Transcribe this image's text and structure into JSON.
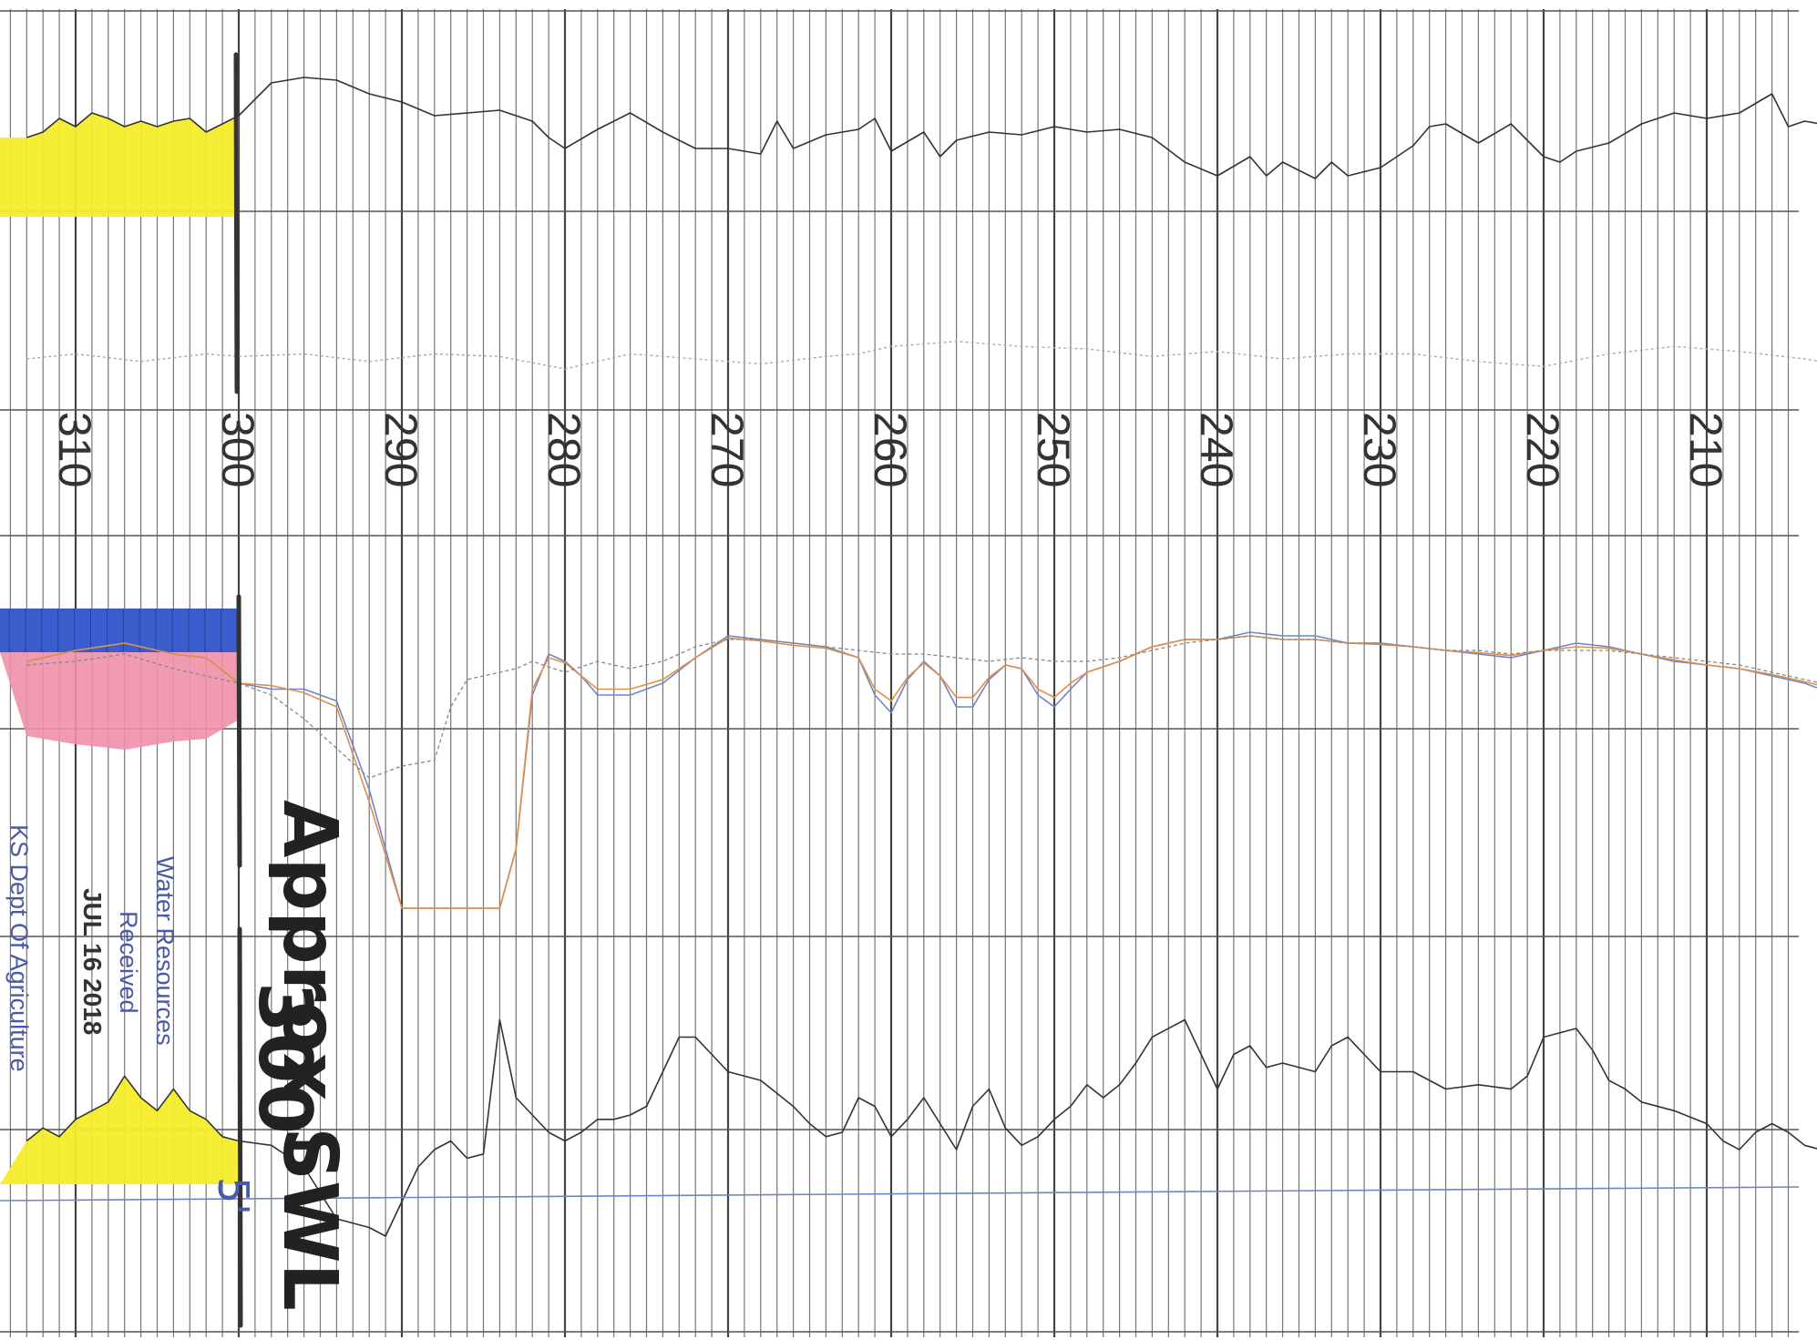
{
  "chart_data": {
    "type": "line",
    "x_axis": {
      "label": "",
      "unit": "",
      "direction": "decreasing left-to-right",
      "range": [
        313,
        203
      ],
      "tick_labels": [
        "310",
        "300",
        "290",
        "280",
        "270",
        "260",
        "250",
        "240",
        "230",
        "220",
        "210"
      ]
    },
    "tracks": [
      {
        "name": "",
        "series": [
          {
            "name": "",
            "color": "#333333",
            "style": "solid",
            "x": [
              313,
              312,
              311,
              310,
              309,
              308,
              307,
              306,
              305,
              304,
              303,
              302,
              301,
              300,
              298,
              296,
              294,
              292,
              290,
              288,
              286,
              284,
              282,
              281,
              280,
              278,
              276,
              274,
              272,
              270,
              268,
              267,
              266,
              264,
              262,
              261,
              260,
              258,
              257,
              256,
              254,
              252,
              250,
              248,
              246,
              244,
              242,
              240,
              238,
              237,
              236,
              234,
              233,
              232,
              230,
              228,
              227,
              226,
              224,
              222,
              220,
              219,
              218,
              216,
              214,
              212,
              210,
              208,
              206,
              205,
              204,
              203
            ],
            "y": [
              0.4,
              0.5,
              0.75,
              0.6,
              0.85,
              0.75,
              0.6,
              0.7,
              0.6,
              0.7,
              0.75,
              0.5,
              0.65,
              0.8,
              1.4,
              1.5,
              1.45,
              1.2,
              1.05,
              0.8,
              0.85,
              0.9,
              0.7,
              0.4,
              0.2,
              0.55,
              0.85,
              0.5,
              0.2,
              0.2,
              0.1,
              0.7,
              0.2,
              0.45,
              0.55,
              0.75,
              0.15,
              0.5,
              0.05,
              0.35,
              0.5,
              0.45,
              0.6,
              0.5,
              0.55,
              0.4,
              -0.05,
              -0.3,
              0.05,
              -0.3,
              -0.05,
              -0.35,
              -0.05,
              -0.3,
              -0.15,
              0.25,
              0.6,
              0.65,
              0.3,
              0.65,
              0.05,
              -0.05,
              0.15,
              0.3,
              0.65,
              0.85,
              0.75,
              0.85,
              1.2,
              0.6,
              0.7,
              0.65
            ]
          },
          {
            "name": "",
            "color": "#aaaaaa",
            "style": "dotted",
            "x": [
              313,
              310,
              306,
              302,
              300,
              296,
              292,
              288,
              284,
              280,
              276,
              272,
              268,
              264,
              262,
              260,
              256,
              252,
              248,
              244,
              240,
              236,
              232,
              228,
              224,
              220,
              216,
              212,
              208,
              204,
              203
            ],
            "y": [
              0.2,
              0.3,
              0.15,
              0.3,
              0.25,
              0.3,
              0.15,
              0.3,
              0.25,
              0.0,
              0.3,
              0.2,
              0.1,
              0.25,
              0.3,
              0.45,
              0.55,
              0.45,
              0.4,
              0.25,
              0.35,
              0.2,
              0.3,
              0.3,
              0.15,
              0.05,
              0.3,
              0.45,
              0.35,
              0.2,
              0.15
            ]
          }
        ]
      },
      {
        "name": "",
        "series": [
          {
            "name": "",
            "color": "#6f86c6",
            "style": "solid",
            "x": [
              313,
              310,
              307,
              304,
              302,
              300,
              298,
              296,
              294,
              292,
              290,
              288,
              286,
              285,
              284,
              283,
              282,
              281,
              280,
              279,
              278,
              276,
              274,
              272,
              270,
              268,
              266,
              264,
              262,
              261,
              260,
              259,
              258,
              257,
              256,
              255,
              254,
              253,
              252,
              251,
              250,
              249,
              248,
              246,
              244,
              242,
              240,
              238,
              236,
              234,
              232,
              230,
              228,
              226,
              224,
              222,
              220,
              218,
              216,
              214,
              212,
              210,
              208,
              206,
              204,
              203
            ],
            "y": [
              0.3,
              0.45,
              0.55,
              0.4,
              0.35,
              0.0,
              -0.05,
              -0.05,
              -0.15,
              -0.9,
              -1.9,
              -1.9,
              -1.9,
              -1.9,
              -1.9,
              -1.4,
              -0.1,
              0.4,
              0.3,
              0.1,
              -0.1,
              -0.1,
              0.0,
              0.35,
              0.65,
              0.6,
              0.55,
              0.5,
              0.35,
              -0.1,
              -0.25,
              0.05,
              0.3,
              0.1,
              -0.2,
              -0.2,
              0.05,
              0.25,
              0.2,
              -0.1,
              -0.2,
              -0.05,
              0.15,
              0.3,
              0.5,
              0.6,
              0.6,
              0.7,
              0.65,
              0.65,
              0.55,
              0.55,
              0.5,
              0.45,
              0.4,
              0.35,
              0.45,
              0.55,
              0.5,
              0.4,
              0.3,
              0.25,
              0.2,
              0.1,
              0.0,
              -0.05
            ]
          },
          {
            "name": "",
            "color": "#e08f4a",
            "style": "solid",
            "x": [
              313,
              310,
              307,
              304,
              302,
              300,
              298,
              296,
              294,
              292,
              290,
              288,
              286,
              285,
              284,
              283,
              282,
              281,
              280,
              279,
              278,
              276,
              274,
              272,
              270,
              268,
              266,
              264,
              262,
              261,
              260,
              259,
              258,
              257,
              256,
              255,
              254,
              253,
              252,
              251,
              250,
              249,
              248,
              246,
              244,
              242,
              240,
              238,
              236,
              234,
              232,
              230,
              228,
              226,
              224,
              222,
              220,
              218,
              216,
              214,
              212,
              210,
              208,
              206,
              204,
              203
            ],
            "y": [
              0.3,
              0.45,
              0.55,
              0.4,
              0.35,
              0.0,
              -0.02,
              -0.08,
              -0.2,
              -1.0,
              -1.9,
              -1.9,
              -1.9,
              -1.9,
              -1.9,
              -1.4,
              -0.05,
              0.35,
              0.28,
              0.1,
              -0.05,
              -0.05,
              0.05,
              0.35,
              0.62,
              0.58,
              0.52,
              0.48,
              0.35,
              -0.05,
              -0.15,
              0.08,
              0.28,
              0.1,
              -0.12,
              -0.12,
              0.08,
              0.25,
              0.2,
              -0.05,
              -0.12,
              0.0,
              0.15,
              0.3,
              0.5,
              0.6,
              0.6,
              0.65,
              0.6,
              0.6,
              0.55,
              0.53,
              0.5,
              0.45,
              0.42,
              0.38,
              0.45,
              0.5,
              0.48,
              0.4,
              0.32,
              0.25,
              0.2,
              0.12,
              0.02,
              -0.02
            ]
          },
          {
            "name": "",
            "color": "#888888",
            "style": "dotted",
            "x": [
              313,
              310,
              307,
              304,
              302,
              300,
              298,
              296,
              294,
              292,
              290,
              288,
              287,
              286,
              285,
              284,
              283,
              282,
              280,
              278,
              276,
              274,
              272,
              270,
              268,
              266,
              264,
              262,
              260,
              258,
              256,
              254,
              252,
              250,
              248,
              246,
              244,
              242,
              240,
              238,
              236,
              234,
              232,
              230,
              228,
              226,
              224,
              222,
              220,
              218,
              216,
              214,
              212,
              210,
              208,
              206,
              204,
              203
            ],
            "y": [
              0.25,
              0.3,
              0.4,
              0.2,
              0.1,
              0.0,
              -0.1,
              -0.3,
              -0.55,
              -0.8,
              -0.7,
              -0.65,
              -0.2,
              0.05,
              0.1,
              0.15,
              0.2,
              0.3,
              0.15,
              0.3,
              0.2,
              0.3,
              0.5,
              0.6,
              0.6,
              0.55,
              0.5,
              0.45,
              0.4,
              0.4,
              0.35,
              0.3,
              0.35,
              0.3,
              0.3,
              0.35,
              0.45,
              0.55,
              0.6,
              0.65,
              0.6,
              0.6,
              0.55,
              0.55,
              0.5,
              0.45,
              0.45,
              0.4,
              0.45,
              0.45,
              0.45,
              0.4,
              0.35,
              0.3,
              0.25,
              0.15,
              0.05,
              0.0
            ]
          }
        ]
      },
      {
        "name": "",
        "series": [
          {
            "name": "",
            "color": "#333333",
            "style": "solid",
            "x": [
              313,
              312,
              311,
              310,
              309,
              308,
              307,
              306,
              305,
              304,
              303,
              302,
              301,
              300,
              298,
              296,
              294,
              292,
              291,
              290,
              289,
              288,
              287,
              286,
              285,
              284,
              283,
              282,
              281,
              280,
              279,
              278,
              277,
              276,
              275,
              274,
              273,
              272,
              271,
              270,
              268,
              266,
              265,
              264,
              263,
              262,
              261,
              260,
              259,
              258,
              257,
              256,
              255,
              254,
              253,
              252,
              251,
              250,
              249,
              248,
              247,
              246,
              245,
              244,
              242,
              240,
              239,
              238,
              237,
              236,
              234,
              233,
              232,
              230,
              228,
              226,
              224,
              222,
              221,
              220,
              218,
              217,
              216,
              215,
              214,
              212,
              210,
              209,
              208,
              207,
              206,
              205,
              204,
              203
            ],
            "y": [
              0.1,
              0.25,
              0.15,
              0.35,
              0.45,
              0.55,
              0.85,
              0.6,
              0.45,
              0.7,
              0.45,
              0.35,
              0.15,
              0.1,
              0.05,
              -0.2,
              -0.8,
              -0.9,
              -1.0,
              -0.6,
              -0.2,
              0.0,
              0.1,
              -0.1,
              -0.05,
              1.5,
              0.6,
              0.4,
              0.2,
              0.1,
              0.2,
              0.35,
              0.35,
              0.4,
              0.5,
              0.9,
              1.3,
              1.3,
              1.1,
              0.9,
              0.8,
              0.5,
              0.3,
              0.15,
              0.2,
              0.6,
              0.5,
              0.15,
              0.35,
              0.6,
              0.3,
              0.0,
              0.5,
              0.7,
              0.25,
              0.05,
              0.15,
              0.35,
              0.5,
              0.75,
              0.6,
              0.75,
              1.0,
              1.3,
              1.5,
              0.7,
              1.1,
              1.2,
              0.95,
              1.0,
              0.9,
              1.2,
              1.3,
              0.9,
              0.9,
              0.7,
              0.75,
              0.7,
              0.85,
              1.3,
              1.4,
              1.15,
              0.8,
              0.7,
              0.55,
              0.45,
              0.3,
              0.1,
              0.0,
              0.2,
              0.3,
              0.2,
              0.05,
              0.0
            ]
          }
        ]
      }
    ],
    "grid": true,
    "annotations": {
      "stamp_line1": "Water Resources",
      "stamp_line2": "Received",
      "stamp_date": "JUL 16 2018",
      "stamp_line3": "KS Dept Of Agriculture",
      "handwritten_main": "Approx SWL",
      "handwritten_depth": "300'",
      "handwritten_small": "5'"
    },
    "highlight_colors": {
      "yellow": "#f5ec2a",
      "blue": "#3a5ccc",
      "pink": "#ef90aa"
    }
  }
}
